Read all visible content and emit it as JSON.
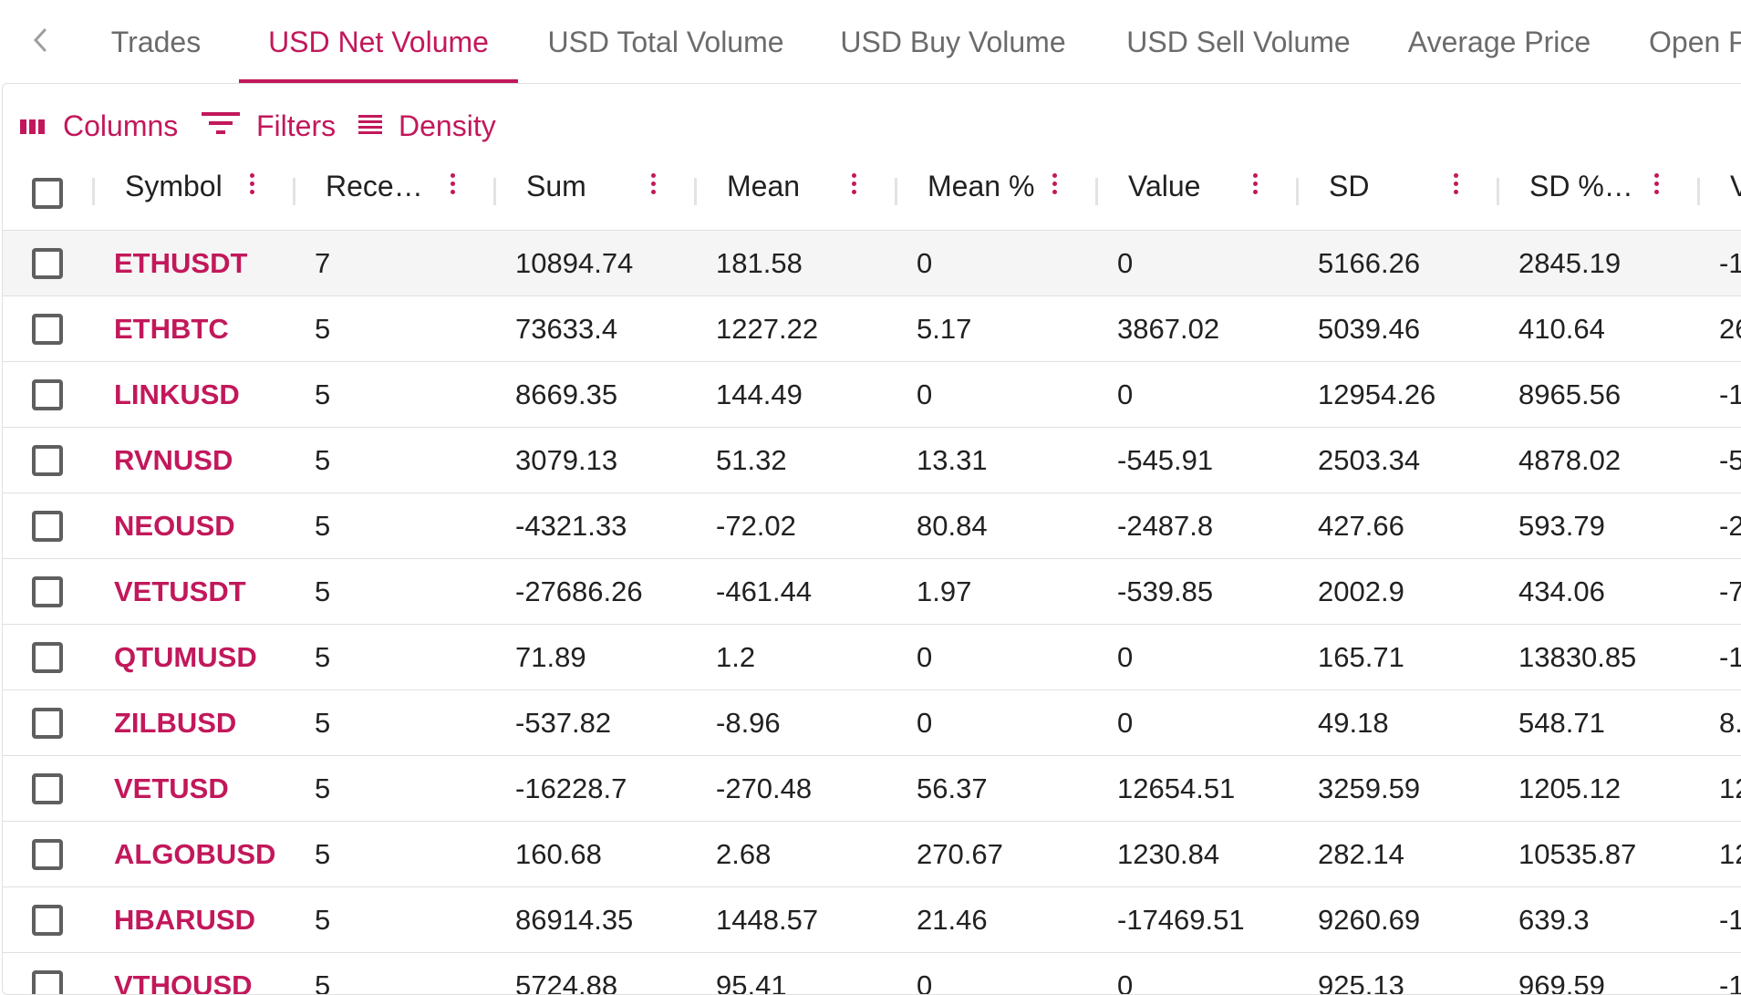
{
  "tabs": {
    "items": [
      {
        "label": "Trades"
      },
      {
        "label": "USD Net Volume"
      },
      {
        "label": "USD Total Volume"
      },
      {
        "label": "USD Buy Volume"
      },
      {
        "label": "USD Sell Volume"
      },
      {
        "label": "Average Price"
      },
      {
        "label": "Open P"
      }
    ],
    "active_index": 1
  },
  "toolbar": {
    "columns_label": "Columns",
    "filters_label": "Filters",
    "density_label": "Density"
  },
  "columns": [
    {
      "label": "Symbol"
    },
    {
      "label": "Rece…"
    },
    {
      "label": "Sum"
    },
    {
      "label": "Mean"
    },
    {
      "label": "Mean %"
    },
    {
      "label": "Value"
    },
    {
      "label": "SD"
    },
    {
      "label": "SD %…"
    },
    {
      "label": "V"
    }
  ],
  "rows": [
    {
      "symbol": "ETHUSDT",
      "recent": "7",
      "sum": "10894.74",
      "mean": "181.58",
      "mean_pct": "0",
      "value": "0",
      "sd": "5166.26",
      "sd_pct": "2845.19",
      "extra": "-1"
    },
    {
      "symbol": "ETHBTC",
      "recent": "5",
      "sum": "73633.4",
      "mean": "1227.22",
      "mean_pct": "5.17",
      "value": "3867.02",
      "sd": "5039.46",
      "sd_pct": "410.64",
      "extra": "26"
    },
    {
      "symbol": "LINKUSD",
      "recent": "5",
      "sum": "8669.35",
      "mean": "144.49",
      "mean_pct": "0",
      "value": "0",
      "sd": "12954.26",
      "sd_pct": "8965.56",
      "extra": "-1"
    },
    {
      "symbol": "RVNUSD",
      "recent": "5",
      "sum": "3079.13",
      "mean": "51.32",
      "mean_pct": "13.31",
      "value": "-545.91",
      "sd": "2503.34",
      "sd_pct": "4878.02",
      "extra": "-5"
    },
    {
      "symbol": "NEOUSD",
      "recent": "5",
      "sum": "-4321.33",
      "mean": "-72.02",
      "mean_pct": "80.84",
      "value": "-2487.8",
      "sd": "427.66",
      "sd_pct": "593.79",
      "extra": "-2"
    },
    {
      "symbol": "VETUSDT",
      "recent": "5",
      "sum": "-27686.26",
      "mean": "-461.44",
      "mean_pct": "1.97",
      "value": "-539.85",
      "sd": "2002.9",
      "sd_pct": "434.06",
      "extra": "-7"
    },
    {
      "symbol": "QTUMUSD",
      "recent": "5",
      "sum": "71.89",
      "mean": "1.2",
      "mean_pct": "0",
      "value": "0",
      "sd": "165.71",
      "sd_pct": "13830.85",
      "extra": "-1"
    },
    {
      "symbol": "ZILBUSD",
      "recent": "5",
      "sum": "-537.82",
      "mean": "-8.96",
      "mean_pct": "0",
      "value": "0",
      "sd": "49.18",
      "sd_pct": "548.71",
      "extra": "8."
    },
    {
      "symbol": "VETUSD",
      "recent": "5",
      "sum": "-16228.7",
      "mean": "-270.48",
      "mean_pct": "56.37",
      "value": "12654.51",
      "sd": "3259.59",
      "sd_pct": "1205.12",
      "extra": "12"
    },
    {
      "symbol": "ALGOBUSD",
      "recent": "5",
      "sum": "160.68",
      "mean": "2.68",
      "mean_pct": "270.67",
      "value": "1230.84",
      "sd": "282.14",
      "sd_pct": "10535.87",
      "extra": "12"
    },
    {
      "symbol": "HBARUSD",
      "recent": "5",
      "sum": "86914.35",
      "mean": "1448.57",
      "mean_pct": "21.46",
      "value": "-17469.51",
      "sd": "9260.69",
      "sd_pct": "639.3",
      "extra": "-1"
    },
    {
      "symbol": "VTHOUSD",
      "recent": "5",
      "sum": "5724.88",
      "mean": "95.41",
      "mean_pct": "0",
      "value": "0",
      "sd": "925.13",
      "sd_pct": "969.59",
      "extra": "-1"
    }
  ],
  "colors": {
    "accent": "#c2185b",
    "text": "#212121",
    "muted": "#6b6b6b",
    "border": "#e0e0e0",
    "selected_row": "#f5f5f5"
  }
}
